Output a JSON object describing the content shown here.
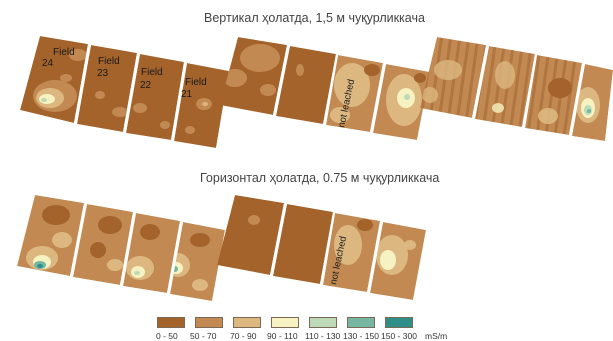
{
  "titles": {
    "vertical": "Вертикал ҳолатда, 1,5 м чуқурликкача",
    "horizontal": "Горизонтал ҳолатда, 0.75 м чуқурликкача"
  },
  "field_labels": [
    {
      "name": "Field",
      "num": "24"
    },
    {
      "name": "Field",
      "num": "23"
    },
    {
      "name": "Field",
      "num": "22"
    },
    {
      "name": "Field",
      "num": "21"
    }
  ],
  "not_leached": "not leached",
  "legend": {
    "unit": "mS/m",
    "classes": [
      {
        "label": "0 - 50",
        "color": "#a3632b"
      },
      {
        "label": "50 - 70",
        "color": "#c28a52"
      },
      {
        "label": "70 - 90",
        "color": "#dcb880"
      },
      {
        "label": "90 - 110",
        "color": "#f6f2c2"
      },
      {
        "label": "110 - 130",
        "color": "#bcdab8"
      },
      {
        "label": "130 - 150",
        "color": "#76b6a2"
      },
      {
        "label": "150 - 300",
        "color": "#2f8f88"
      }
    ]
  }
}
